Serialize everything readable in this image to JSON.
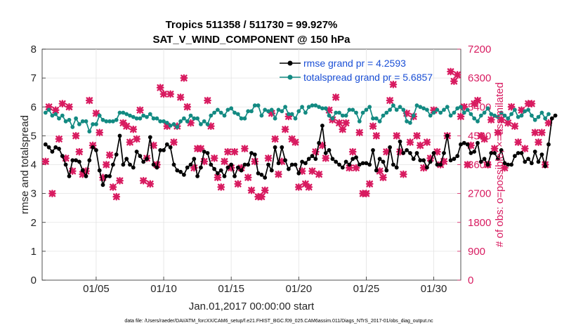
{
  "chart_data": {
    "type": "line",
    "title": "Tropics 511358 / 511730 = 99.927%",
    "subtitle": "SAT_V_WIND_COMPONENT @ 150 hPa",
    "xlabel": "Jan.01,2017 00:00:00 start",
    "ylabel": "rmse and totalspread",
    "y2label": "# of obs: o=possible; ×=assimilated",
    "footnote": "data file: /Users/raeder/DAI/ATM_forcXX/CAM6_setup/f.e21.FHIST_BGC.f09_025.CAM6assim.011/Diags_NTrS_2017-01/obs_diag_output.nc",
    "xlim": [
      1,
      32
    ],
    "ylim": [
      0,
      8
    ],
    "y2lim": [
      0,
      7200
    ],
    "xticks": [
      5,
      10,
      15,
      20,
      25,
      30
    ],
    "xtick_labels": [
      "01/05",
      "01/10",
      "01/15",
      "01/20",
      "01/25",
      "01/30"
    ],
    "yticks": [
      "0",
      "1",
      "2",
      "3",
      "4",
      "5",
      "6",
      "7",
      "8"
    ],
    "y2ticks": [
      "0",
      "900",
      "1800",
      "2700",
      "3600",
      "4500",
      "5400",
      "6300",
      "7200"
    ],
    "legend": [
      {
        "label": "rmse grand pr = 4.2593",
        "color": "#000000"
      },
      {
        "label": "totalspread grand pr = 5.6857",
        "color": "#138a82"
      }
    ],
    "colors": {
      "rmse": "#000000",
      "spread": "#138a82",
      "obs": "#d81b60",
      "legend_text": "#1a4fd6"
    },
    "x_start": 1.25,
    "x_step": 0.25,
    "series": [
      {
        "name": "rmse",
        "axis": "left",
        "values": [
          4.7,
          4.6,
          4.45,
          4.6,
          4.55,
          4.3,
          4.0,
          3.6,
          4.15,
          4.15,
          4.1,
          3.8,
          3.6,
          4.15,
          4.6,
          4.5,
          3.8,
          3.3,
          3.6,
          3.6,
          4.0,
          4.35,
          5.0,
          4.0,
          4.2,
          4.0,
          3.9,
          4.45,
          4.3,
          4.1,
          4.2,
          4.95,
          4.0,
          3.9,
          4.5,
          4.5,
          4.7,
          4.6,
          4.0,
          3.8,
          3.75,
          3.65,
          3.9,
          4.0,
          4.2,
          3.6,
          3.9,
          4.45,
          4.4,
          4.0,
          3.85,
          3.7,
          3.8,
          3.6,
          3.9,
          4.0,
          3.6,
          3.9,
          3.8,
          4.0,
          4.0,
          4.4,
          4.35,
          3.7,
          3.65,
          3.55,
          4.0,
          3.8,
          4.6,
          4.05,
          4.6,
          4.15,
          3.85,
          4.0,
          4.0,
          3.7,
          4.1,
          4.05,
          4.2,
          4.3,
          4.2,
          4.75,
          5.35,
          4.4,
          4.5,
          4.2,
          4.1,
          4.0,
          3.9,
          4.1,
          4.0,
          4.2,
          4.25,
          4.0,
          4.05,
          4.05,
          4.0,
          4.5,
          3.8,
          4.2,
          4.1,
          3.8,
          4.6,
          4.0,
          3.9,
          4.8,
          4.4,
          4.5,
          4.4,
          4.2,
          4.4,
          4.15,
          4.15,
          3.9,
          4.1,
          4.4,
          4.0,
          4.0,
          4.4,
          5.0,
          4.15,
          4.2,
          4.3,
          4.7,
          4.75,
          4.7,
          4.4,
          4.45,
          4.75,
          4.1,
          4.2,
          4.0,
          4.4,
          4.4,
          4.2,
          4.5,
          4.05,
          4.0,
          4.0,
          4.3,
          4.4,
          4.4,
          4.1,
          4.2,
          4.05,
          4.45,
          4.1,
          4.35,
          3.95,
          4.7,
          5.6,
          5.7
        ]
      },
      {
        "name": "totalspread",
        "axis": "left",
        "values": [
          5.8,
          5.9,
          5.7,
          5.75,
          5.6,
          5.7,
          5.5,
          5.55,
          5.3,
          5.6,
          5.4,
          5.5,
          5.5,
          5.15,
          5.4,
          5.4,
          5.7,
          5.55,
          5.5,
          5.5,
          5.5,
          5.55,
          5.8,
          5.8,
          5.75,
          5.7,
          5.65,
          5.6,
          5.6,
          5.7,
          5.65,
          5.75,
          5.6,
          5.6,
          5.5,
          5.5,
          5.45,
          5.35,
          5.4,
          5.3,
          5.5,
          5.6,
          5.5,
          5.7,
          5.6,
          5.6,
          5.4,
          5.5,
          5.4,
          5.7,
          5.8,
          5.9,
          5.8,
          5.7,
          5.9,
          5.95,
          5.8,
          5.75,
          5.6,
          5.6,
          5.85,
          5.85,
          6.05,
          6.05,
          5.7,
          5.9,
          5.85,
          5.9,
          5.6,
          5.9,
          5.85,
          6.0,
          5.75,
          5.75,
          5.6,
          5.85,
          6.0,
          5.8,
          6.0,
          6.05,
          6.05,
          6.0,
          5.95,
          5.95,
          5.7,
          5.6,
          5.8,
          5.8,
          5.7,
          5.7,
          5.9,
          5.9,
          5.8,
          5.5,
          5.8,
          5.9,
          6.0,
          5.6,
          5.6,
          5.5,
          5.7,
          5.8,
          5.9,
          6.05,
          5.9,
          6.0,
          5.9,
          5.5,
          5.45,
          5.7,
          6.05,
          6.0,
          5.95,
          5.9,
          5.7,
          5.8,
          5.9,
          5.8,
          5.9,
          6.0,
          5.7,
          5.8,
          5.95,
          6.0,
          5.8,
          5.9,
          5.75,
          5.6,
          5.5,
          5.7,
          5.8,
          5.95,
          5.75,
          5.7,
          5.65,
          5.8,
          5.7,
          5.6,
          5.75,
          5.9,
          5.65,
          5.7,
          5.85,
          5.9,
          5.7,
          5.55,
          5.65,
          5.8,
          5.6,
          5.75
        ]
      },
      {
        "name": "obs_assimilated",
        "axis": "right",
        "values": [
          3700,
          5400,
          2700,
          5300,
          4400,
          5500,
          3800,
          5400,
          3400,
          4500,
          4000,
          3300,
          3400,
          5600,
          4200,
          5200,
          4600,
          3200,
          3600,
          3900,
          2900,
          2600,
          3100,
          4900,
          4800,
          4300,
          4700,
          4400,
          5300,
          3100,
          3800,
          3000,
          4200,
          3600,
          6000,
          5800,
          4800,
          5800,
          4300,
          4800,
          5700,
          6300,
          5400,
          4900,
          3500,
          4100,
          4100,
          3700,
          5600,
          4800,
          3800,
          3200,
          2900,
          3700,
          4000,
          3500,
          4000,
          3000,
          3500,
          4100,
          3200,
          2800,
          3700,
          2600,
          2600,
          2800,
          3800,
          5200,
          4400,
          3300,
          3700,
          4700,
          5100,
          4400,
          4300,
          2900,
          3400,
          3000,
          2900,
          3400,
          4000,
          3300,
          4200,
          3800,
          5300,
          5000,
          5700,
          4900,
          4700,
          4900,
          3500,
          4000,
          3500,
          4600,
          2700,
          2700,
          3000,
          4800,
          4500,
          3400,
          3200,
          4000,
          5600,
          6100,
          4500,
          4000,
          3300,
          5200,
          4300,
          5100,
          4500,
          4200,
          3500,
          4300,
          3800,
          5300,
          4000,
          3600,
          3700,
          4500,
          6500,
          6200,
          6400,
          5100,
          5400,
          3600,
          4200,
          5500,
          5600,
          4500,
          4400,
          3600,
          5000,
          4100,
          4600,
          5000,
          3500,
          4900,
          5400,
          4800,
          4300,
          5300,
          4100,
          5500,
          5500,
          4600,
          4300,
          4600,
          3600,
          4900
        ]
      }
    ]
  }
}
